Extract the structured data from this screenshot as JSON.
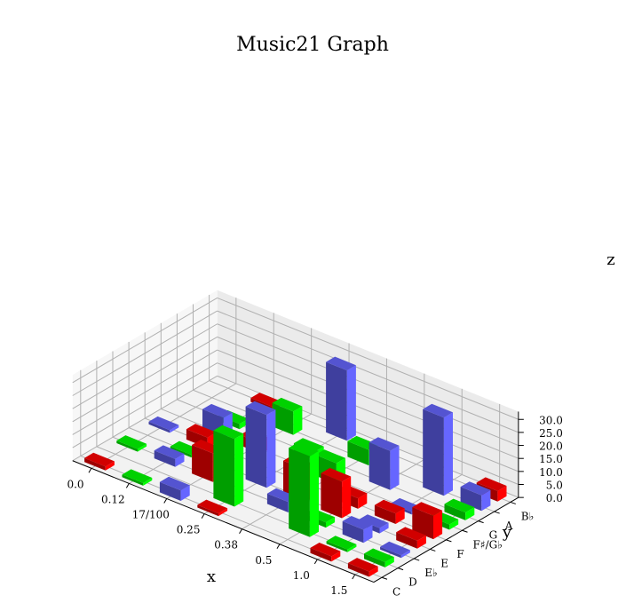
{
  "chart_data": {
    "type": "bar3d",
    "title": "Music21 Graph",
    "xlabel": "x",
    "ylabel": "y",
    "zlabel": "z",
    "x_ticks": [
      "0.0",
      "0.12",
      "17/100",
      "0.25",
      "0.38",
      "0.5",
      "1.0",
      "1.5"
    ],
    "y_ticks": [
      "C",
      "D",
      "E♭",
      "E",
      "F",
      "F♯/G♭",
      "G",
      "A",
      "B♭"
    ],
    "z_ticks": [
      "0.0",
      "5.0",
      "10.0",
      "15.0",
      "20.0",
      "25.0",
      "30.0"
    ],
    "zlim": [
      0,
      33
    ],
    "colors": {
      "red": "#ff0000",
      "green": "#00ff00",
      "blue": "#6666ff"
    },
    "bars": [
      {
        "x": 0,
        "y": 0,
        "z": 1.5,
        "color": "red"
      },
      {
        "x": 0,
        "y": 2,
        "z": 1,
        "color": "green"
      },
      {
        "x": 0,
        "y": 4,
        "z": 1,
        "color": "blue"
      },
      {
        "x": 1,
        "y": 0,
        "z": 1,
        "color": "green"
      },
      {
        "x": 1,
        "y": 2,
        "z": 3,
        "color": "blue"
      },
      {
        "x": 1,
        "y": 3,
        "z": 1,
        "color": "green"
      },
      {
        "x": 1,
        "y": 4,
        "z": 4,
        "color": "red"
      },
      {
        "x": 1,
        "y": 5,
        "z": 8,
        "color": "blue"
      },
      {
        "x": 1,
        "y": 6,
        "z": 2,
        "color": "green"
      },
      {
        "x": 1,
        "y": 8,
        "z": 1.5,
        "color": "red"
      },
      {
        "x": 2,
        "y": 0,
        "z": 4,
        "color": "blue"
      },
      {
        "x": 2,
        "y": 2,
        "z": 11,
        "color": "red"
      },
      {
        "x": 2,
        "y": 5,
        "z": 4,
        "color": "red"
      },
      {
        "x": 2,
        "y": 7,
        "z": 9,
        "color": "green"
      },
      {
        "x": 3,
        "y": 0,
        "z": 1,
        "color": "red"
      },
      {
        "x": 3,
        "y": 1,
        "z": 26,
        "color": "green"
      },
      {
        "x": 3,
        "y": 3,
        "z": 28,
        "color": "blue"
      },
      {
        "x": 3,
        "y": 6,
        "z": 3,
        "color": "green"
      },
      {
        "x": 3,
        "y": 8,
        "z": 27,
        "color": "blue"
      },
      {
        "x": 4,
        "y": 2,
        "z": 4,
        "color": "blue"
      },
      {
        "x": 4,
        "y": 3,
        "z": 13,
        "color": "red"
      },
      {
        "x": 4,
        "y": 5,
        "z": 8,
        "color": "green"
      },
      {
        "x": 4,
        "y": 7,
        "z": 6,
        "color": "green"
      },
      {
        "x": 5,
        "y": 1,
        "z": 31,
        "color": "green"
      },
      {
        "x": 5,
        "y": 2,
        "z": 2,
        "color": "green"
      },
      {
        "x": 5,
        "y": 3,
        "z": 14,
        "color": "red"
      },
      {
        "x": 5,
        "y": 4,
        "z": 4,
        "color": "red"
      },
      {
        "x": 5,
        "y": 6,
        "z": 15,
        "color": "blue"
      },
      {
        "x": 6,
        "y": 0,
        "z": 2,
        "color": "red"
      },
      {
        "x": 6,
        "y": 1,
        "z": 1,
        "color": "green"
      },
      {
        "x": 6,
        "y": 2,
        "z": 5,
        "color": "blue"
      },
      {
        "x": 6,
        "y": 3,
        "z": 2,
        "color": "blue"
      },
      {
        "x": 6,
        "y": 4,
        "z": 4,
        "color": "red"
      },
      {
        "x": 6,
        "y": 5,
        "z": 1,
        "color": "blue"
      },
      {
        "x": 6,
        "y": 7,
        "z": 30,
        "color": "blue"
      },
      {
        "x": 7,
        "y": 0,
        "z": 2,
        "color": "red"
      },
      {
        "x": 7,
        "y": 1,
        "z": 2,
        "color": "green"
      },
      {
        "x": 7,
        "y": 2,
        "z": 1,
        "color": "blue"
      },
      {
        "x": 7,
        "y": 3,
        "z": 3,
        "color": "red"
      },
      {
        "x": 7,
        "y": 4,
        "z": 9,
        "color": "red"
      },
      {
        "x": 7,
        "y": 5,
        "z": 2,
        "color": "green"
      },
      {
        "x": 7,
        "y": 6,
        "z": 3,
        "color": "green"
      },
      {
        "x": 7,
        "y": 7,
        "z": 6,
        "color": "blue"
      },
      {
        "x": 7,
        "y": 8,
        "z": 4,
        "color": "red"
      }
    ]
  }
}
